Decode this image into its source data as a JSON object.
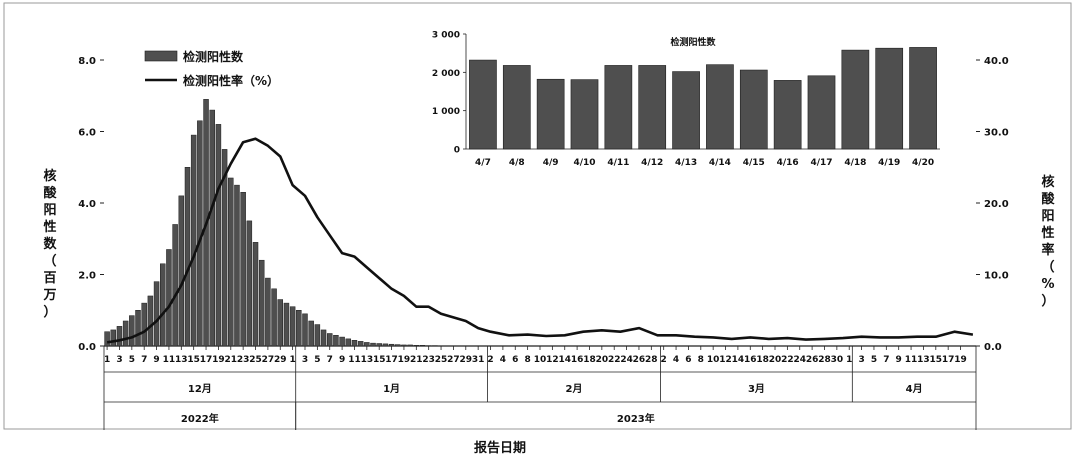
{
  "chart_data": [
    {
      "type": "bar+line",
      "title": "",
      "xlabel": "报告日期",
      "ylabel_left": "核酸阳性数（百万）",
      "ylabel_right": "核酸阳性率（%）",
      "ylim_left": [
        0,
        8
      ],
      "ylim_right": [
        0,
        40
      ],
      "yticks_left": [
        "0.0",
        "2.0",
        "4.0",
        "6.0",
        "8.0"
      ],
      "yticks_right": [
        "0.0",
        "10.0",
        "20.0",
        "30.0",
        "40.0"
      ],
      "legend": {
        "placement": "top-left",
        "bar_label": "检测阳性数",
        "line_label": "检测阳性率（%）"
      },
      "x_start": "2022-12-01",
      "x_end": "2023-04-20",
      "day_tick_labels": [
        "1",
        "3",
        "5",
        "7",
        "9",
        "11",
        "13",
        "15",
        "17",
        "19",
        "21",
        "23",
        "25",
        "27",
        "29",
        "1",
        "3",
        "5",
        "7",
        "9",
        "11",
        "13",
        "15",
        "17",
        "19",
        "21",
        "23",
        "25",
        "27",
        "29",
        "31",
        "2",
        "4",
        "6",
        "8",
        "10",
        "12",
        "14",
        "16",
        "18",
        "20",
        "22",
        "24",
        "26",
        "28",
        "2",
        "4",
        "6",
        "8",
        "10",
        "12",
        "14",
        "16",
        "18",
        "20",
        "22",
        "24",
        "26",
        "28",
        "30",
        "1",
        "3",
        "5",
        "7",
        "9",
        "11",
        "13",
        "15",
        "17",
        "19"
      ],
      "months": [
        {
          "label": "12月",
          "start": "2022-12-01",
          "end": "2022-12-31"
        },
        {
          "label": "1月",
          "start": "2023-01-01",
          "end": "2023-01-31"
        },
        {
          "label": "2月",
          "start": "2023-02-01",
          "end": "2023-02-28"
        },
        {
          "label": "3月",
          "start": "2023-03-01",
          "end": "2023-03-31"
        },
        {
          "label": "4月",
          "start": "2023-04-01",
          "end": "2023-04-20"
        }
      ],
      "years": [
        {
          "label": "2022年",
          "start": "2022-12-01",
          "end": "2022-12-31"
        },
        {
          "label": "2023年",
          "start": "2023-01-01",
          "end": "2023-04-20"
        }
      ],
      "series": [
        {
          "name": "检测阳性数",
          "kind": "bar",
          "axis": "left",
          "unit": "百万",
          "dates": [
            "2022-12-01",
            "2022-12-02",
            "2022-12-03",
            "2022-12-04",
            "2022-12-05",
            "2022-12-06",
            "2022-12-07",
            "2022-12-08",
            "2022-12-09",
            "2022-12-10",
            "2022-12-11",
            "2022-12-12",
            "2022-12-13",
            "2022-12-14",
            "2022-12-15",
            "2022-12-16",
            "2022-12-17",
            "2022-12-18",
            "2022-12-19",
            "2022-12-20",
            "2022-12-21",
            "2022-12-22",
            "2022-12-23",
            "2022-12-24",
            "2022-12-25",
            "2022-12-26",
            "2022-12-27",
            "2022-12-28",
            "2022-12-29",
            "2022-12-30",
            "2022-12-31",
            "2023-01-01",
            "2023-01-02",
            "2023-01-03",
            "2023-01-04",
            "2023-01-05",
            "2023-01-06",
            "2023-01-07",
            "2023-01-08",
            "2023-01-09",
            "2023-01-10",
            "2023-01-11",
            "2023-01-12",
            "2023-01-13",
            "2023-01-14",
            "2023-01-15",
            "2023-01-16",
            "2023-01-17",
            "2023-01-18",
            "2023-01-19",
            "2023-01-20",
            "2023-01-21",
            "2023-01-22",
            "2023-01-23"
          ],
          "values": [
            0.4,
            0.45,
            0.55,
            0.7,
            0.85,
            1.0,
            1.2,
            1.4,
            1.8,
            2.3,
            2.7,
            3.4,
            4.2,
            5.0,
            5.9,
            6.3,
            6.9,
            6.6,
            6.2,
            5.5,
            4.7,
            4.5,
            4.3,
            3.5,
            2.9,
            2.4,
            1.9,
            1.6,
            1.3,
            1.2,
            1.1,
            1.0,
            0.9,
            0.7,
            0.6,
            0.45,
            0.35,
            0.3,
            0.25,
            0.2,
            0.16,
            0.13,
            0.1,
            0.08,
            0.07,
            0.06,
            0.05,
            0.04,
            0.03,
            0.03,
            0.02,
            0.02,
            0.01,
            0.01
          ]
        },
        {
          "name": "检测阳性率（%）",
          "kind": "line",
          "axis": "right",
          "unit": "%",
          "dates": [
            "2022-12-01",
            "2022-12-03",
            "2022-12-05",
            "2022-12-07",
            "2022-12-09",
            "2022-12-11",
            "2022-12-13",
            "2022-12-15",
            "2022-12-17",
            "2022-12-19",
            "2022-12-21",
            "2022-12-23",
            "2022-12-25",
            "2022-12-27",
            "2022-12-29",
            "2022-12-31",
            "2023-01-02",
            "2023-01-04",
            "2023-01-06",
            "2023-01-08",
            "2023-01-10",
            "2023-01-12",
            "2023-01-14",
            "2023-01-16",
            "2023-01-18",
            "2023-01-20",
            "2023-01-22",
            "2023-01-24",
            "2023-01-26",
            "2023-01-28",
            "2023-01-30",
            "2023-02-01",
            "2023-02-04",
            "2023-02-07",
            "2023-02-10",
            "2023-02-13",
            "2023-02-16",
            "2023-02-19",
            "2023-02-22",
            "2023-02-25",
            "2023-02-28",
            "2023-03-03",
            "2023-03-06",
            "2023-03-09",
            "2023-03-12",
            "2023-03-15",
            "2023-03-18",
            "2023-03-21",
            "2023-03-24",
            "2023-03-27",
            "2023-03-30",
            "2023-04-02",
            "2023-04-05",
            "2023-04-08",
            "2023-04-11",
            "2023-04-14",
            "2023-04-17",
            "2023-04-20"
          ],
          "values": [
            0.5,
            0.8,
            1.2,
            2.0,
            3.5,
            5.5,
            8.5,
            12.5,
            17.0,
            22.0,
            25.5,
            28.5,
            29.0,
            28.0,
            26.5,
            22.5,
            21.0,
            18.0,
            15.5,
            13.0,
            12.5,
            11.0,
            9.5,
            8.0,
            7.0,
            5.5,
            5.5,
            4.5,
            4.0,
            3.5,
            2.5,
            2.0,
            1.5,
            1.6,
            1.4,
            1.5,
            2.0,
            2.2,
            2.0,
            2.5,
            1.5,
            1.5,
            1.3,
            1.2,
            1.0,
            1.2,
            1.0,
            1.1,
            0.9,
            1.0,
            1.1,
            1.3,
            1.2,
            1.2,
            1.3,
            1.3,
            2.0,
            1.6
          ]
        }
      ],
      "inset": {
        "type": "bar",
        "title": "检测阳性数",
        "categories": [
          "4/7",
          "4/8",
          "4/9",
          "4/10",
          "4/11",
          "4/12",
          "4/13",
          "4/14",
          "4/15",
          "4/16",
          "4/17",
          "4/18",
          "4/19",
          "4/20"
        ],
        "values": [
          2320,
          2180,
          1820,
          1810,
          2180,
          2180,
          2020,
          2200,
          2060,
          1790,
          1910,
          2580,
          2630,
          2650
        ],
        "ylim": [
          0,
          3000
        ],
        "yticks": [
          "0",
          "1 000",
          "2 000",
          "3 000"
        ]
      }
    }
  ],
  "colors": {
    "bar_fill": "#4f4f4f",
    "bar_stroke": "#1e1e1e",
    "line": "#111111",
    "axis": "#222222",
    "frame": "#888888"
  }
}
